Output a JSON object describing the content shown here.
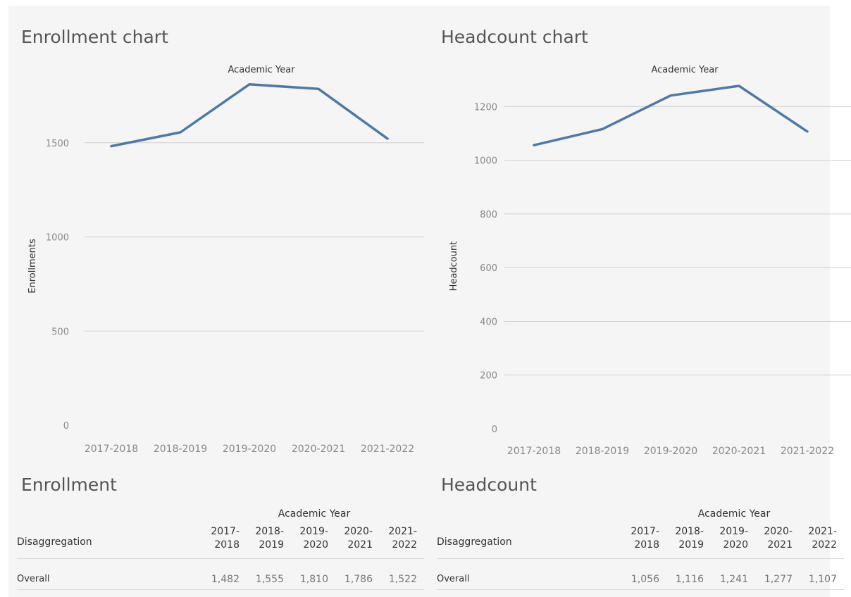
{
  "chart_data": [
    {
      "type": "line",
      "title": "Enrollment chart",
      "xlabel": "Academic Year",
      "ylabel": "Enrollments",
      "categories": [
        "2017-2018",
        "2018-2019",
        "2019-2020",
        "2020-2021",
        "2021-2022"
      ],
      "series": [
        {
          "values": [
            1482,
            1555,
            1810,
            1786,
            1522
          ]
        }
      ],
      "ylim": [
        0,
        1800
      ],
      "yticks": [
        0,
        500,
        1000,
        1500
      ],
      "grid": true,
      "color": "#4e79a7"
    },
    {
      "type": "line",
      "title": "Headcount chart",
      "xlabel": "Academic Year",
      "ylabel": "Headcount",
      "categories": [
        "2017-2018",
        "2018-2019",
        "2019-2020",
        "2020-2021",
        "2021-2022"
      ],
      "series": [
        {
          "values": [
            1056,
            1116,
            1241,
            1277,
            1107
          ]
        }
      ],
      "ylim": [
        0,
        1300
      ],
      "yticks": [
        0,
        200,
        400,
        600,
        800,
        1000,
        1200
      ],
      "grid": true,
      "color": "#4e79a7"
    }
  ],
  "tables": [
    {
      "title": "Enrollment",
      "column_group": "Academic Year",
      "row_header": "Disaggregation",
      "columns": [
        [
          "2017-",
          "2018"
        ],
        [
          "2018-",
          "2019"
        ],
        [
          "2019-",
          "2020"
        ],
        [
          "2020-",
          "2021"
        ],
        [
          "2021-",
          "2022"
        ]
      ],
      "rows": [
        {
          "label": "Overall",
          "values": [
            "1,482",
            "1,555",
            "1,810",
            "1,786",
            "1,522"
          ]
        }
      ]
    },
    {
      "title": "Headcount",
      "column_group": "Academic Year",
      "row_header": "Disaggregation",
      "columns": [
        [
          "2017-",
          "2018"
        ],
        [
          "2018-",
          "2019"
        ],
        [
          "2019-",
          "2020"
        ],
        [
          "2020-",
          "2021"
        ],
        [
          "2021-",
          "2022"
        ]
      ],
      "rows": [
        {
          "label": "Overall",
          "values": [
            "1,056",
            "1,116",
            "1,241",
            "1,277",
            "1,107"
          ]
        }
      ]
    }
  ]
}
